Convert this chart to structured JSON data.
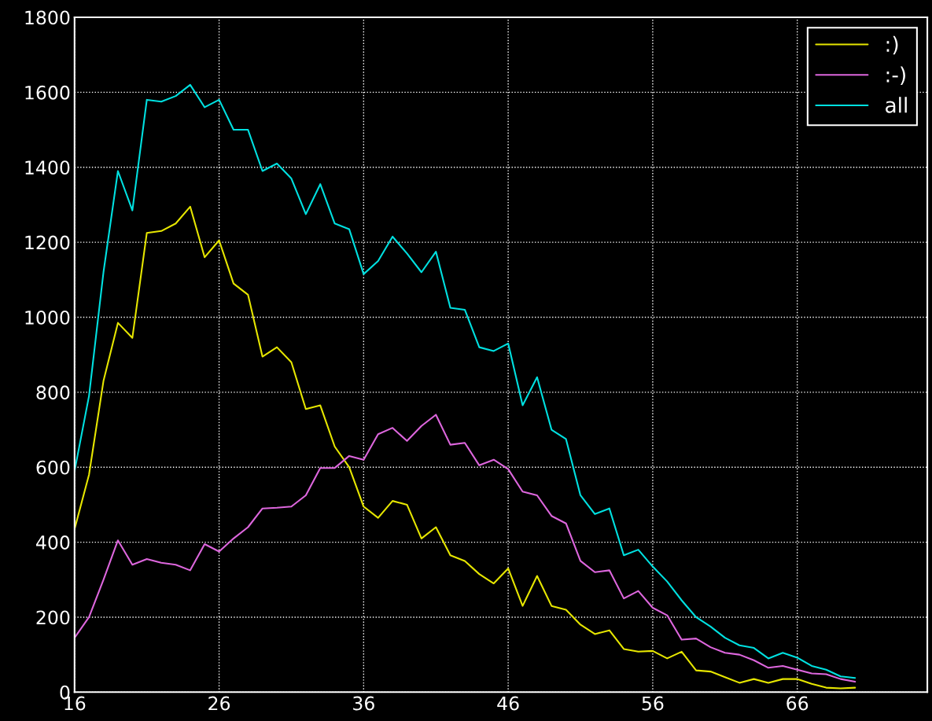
{
  "chart_data": {
    "type": "line",
    "x": [
      16,
      17,
      18,
      19,
      20,
      21,
      22,
      23,
      24,
      25,
      26,
      27,
      28,
      29,
      30,
      31,
      32,
      33,
      34,
      35,
      36,
      37,
      38,
      39,
      40,
      41,
      42,
      43,
      44,
      45,
      46,
      47,
      48,
      49,
      50,
      51,
      52,
      53,
      54,
      55,
      56,
      57,
      58,
      59,
      60,
      61,
      62,
      63,
      64,
      65,
      66,
      67,
      68,
      69,
      70
    ],
    "series": [
      {
        "name": ":)",
        "color": "#e6e600",
        "values": [
          435,
          580,
          830,
          985,
          945,
          1225,
          1230,
          1250,
          1295,
          1160,
          1205,
          1090,
          1060,
          895,
          920,
          880,
          755,
          765,
          655,
          600,
          495,
          465,
          510,
          500,
          410,
          440,
          365,
          350,
          315,
          290,
          330,
          230,
          310,
          230,
          220,
          180,
          155,
          165,
          115,
          108,
          110,
          90,
          108,
          58,
          55,
          40,
          25,
          35,
          25,
          35,
          35,
          22,
          12,
          10,
          12
        ]
      },
      {
        "name": ":-)",
        "color": "#dd66dd",
        "values": [
          145,
          200,
          300,
          405,
          340,
          355,
          345,
          340,
          325,
          395,
          375,
          410,
          440,
          490,
          492,
          495,
          525,
          598,
          598,
          630,
          620,
          688,
          705,
          670,
          710,
          740,
          660,
          665,
          605,
          620,
          595,
          535,
          525,
          470,
          450,
          350,
          320,
          325,
          250,
          270,
          225,
          205,
          140,
          143,
          120,
          105,
          100,
          85,
          65,
          70,
          60,
          50,
          48,
          35,
          28
        ]
      },
      {
        "name": "all",
        "color": "#00e0e0",
        "values": [
          590,
          790,
          1120,
          1390,
          1285,
          1580,
          1575,
          1590,
          1620,
          1560,
          1580,
          1500,
          1500,
          1390,
          1410,
          1370,
          1275,
          1355,
          1250,
          1235,
          1115,
          1150,
          1215,
          1170,
          1120,
          1175,
          1025,
          1020,
          920,
          910,
          930,
          765,
          840,
          700,
          675,
          525,
          475,
          490,
          365,
          380,
          335,
          295,
          245,
          200,
          175,
          145,
          125,
          118,
          90,
          105,
          92,
          70,
          60,
          42,
          38
        ]
      }
    ],
    "xlim": [
      16,
      75
    ],
    "xticks": [
      16,
      26,
      36,
      46,
      56,
      66
    ],
    "ylim": [
      0,
      1800
    ],
    "yticks": [
      0,
      200,
      400,
      600,
      800,
      1000,
      1200,
      1400,
      1600,
      1800
    ],
    "grid": true,
    "legend": "top right"
  }
}
